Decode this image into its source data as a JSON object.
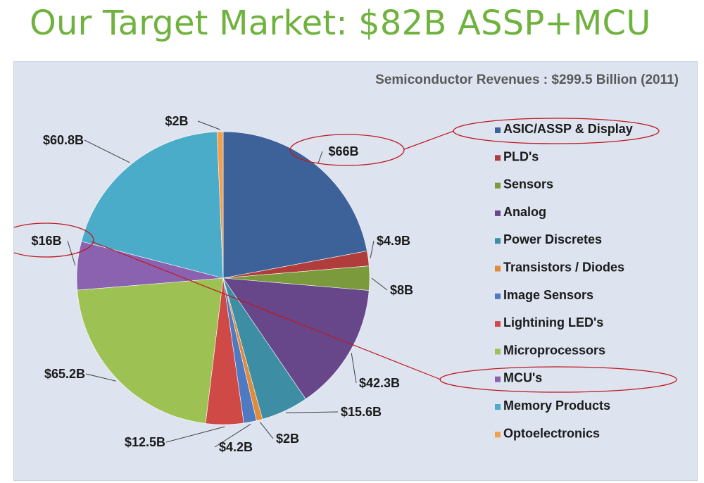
{
  "slide": {
    "title": "Our Target Market: $82B ASSP+MCU"
  },
  "colors": {
    "title_green": "#6fb23e",
    "panel_bg": "#dde3ef",
    "highlight_red": "#c0181e"
  },
  "chart_data": {
    "type": "pie",
    "title": "Semiconductor Revenues : $299.5 Billion (2011)",
    "unit": "B",
    "categories": [
      "ASIC/ASSP & Display",
      "PLD's",
      "Sensors",
      "Analog",
      "Power Discretes",
      "Transistors / Diodes",
      "Image Sensors",
      "Lightining LED's",
      "Microprocessors",
      "MCU's",
      "Memory Products",
      "Optoelectronics"
    ],
    "values": [
      66,
      4.9,
      8,
      42.3,
      15.6,
      2,
      4.2,
      12.5,
      65.2,
      16,
      60.8,
      2
    ],
    "data_labels": [
      "$66B",
      "$4.9B",
      "$8B",
      "$42.3B",
      "$15.6B",
      "$2B",
      "$4.2B",
      "$12.5B",
      "$65.2B",
      "$16B",
      "$60.8B",
      "$2B"
    ],
    "colors": [
      "#3d6199",
      "#b03c3c",
      "#7a9a3c",
      "#67478a",
      "#3d8ea5",
      "#e08a3a",
      "#4f7ac2",
      "#cf4a46",
      "#9dc152",
      "#8a62b0",
      "#4aacc8",
      "#f4a04a"
    ],
    "legend_position": "right",
    "highlighted": [
      "ASIC/ASSP & Display",
      "MCU's"
    ]
  }
}
